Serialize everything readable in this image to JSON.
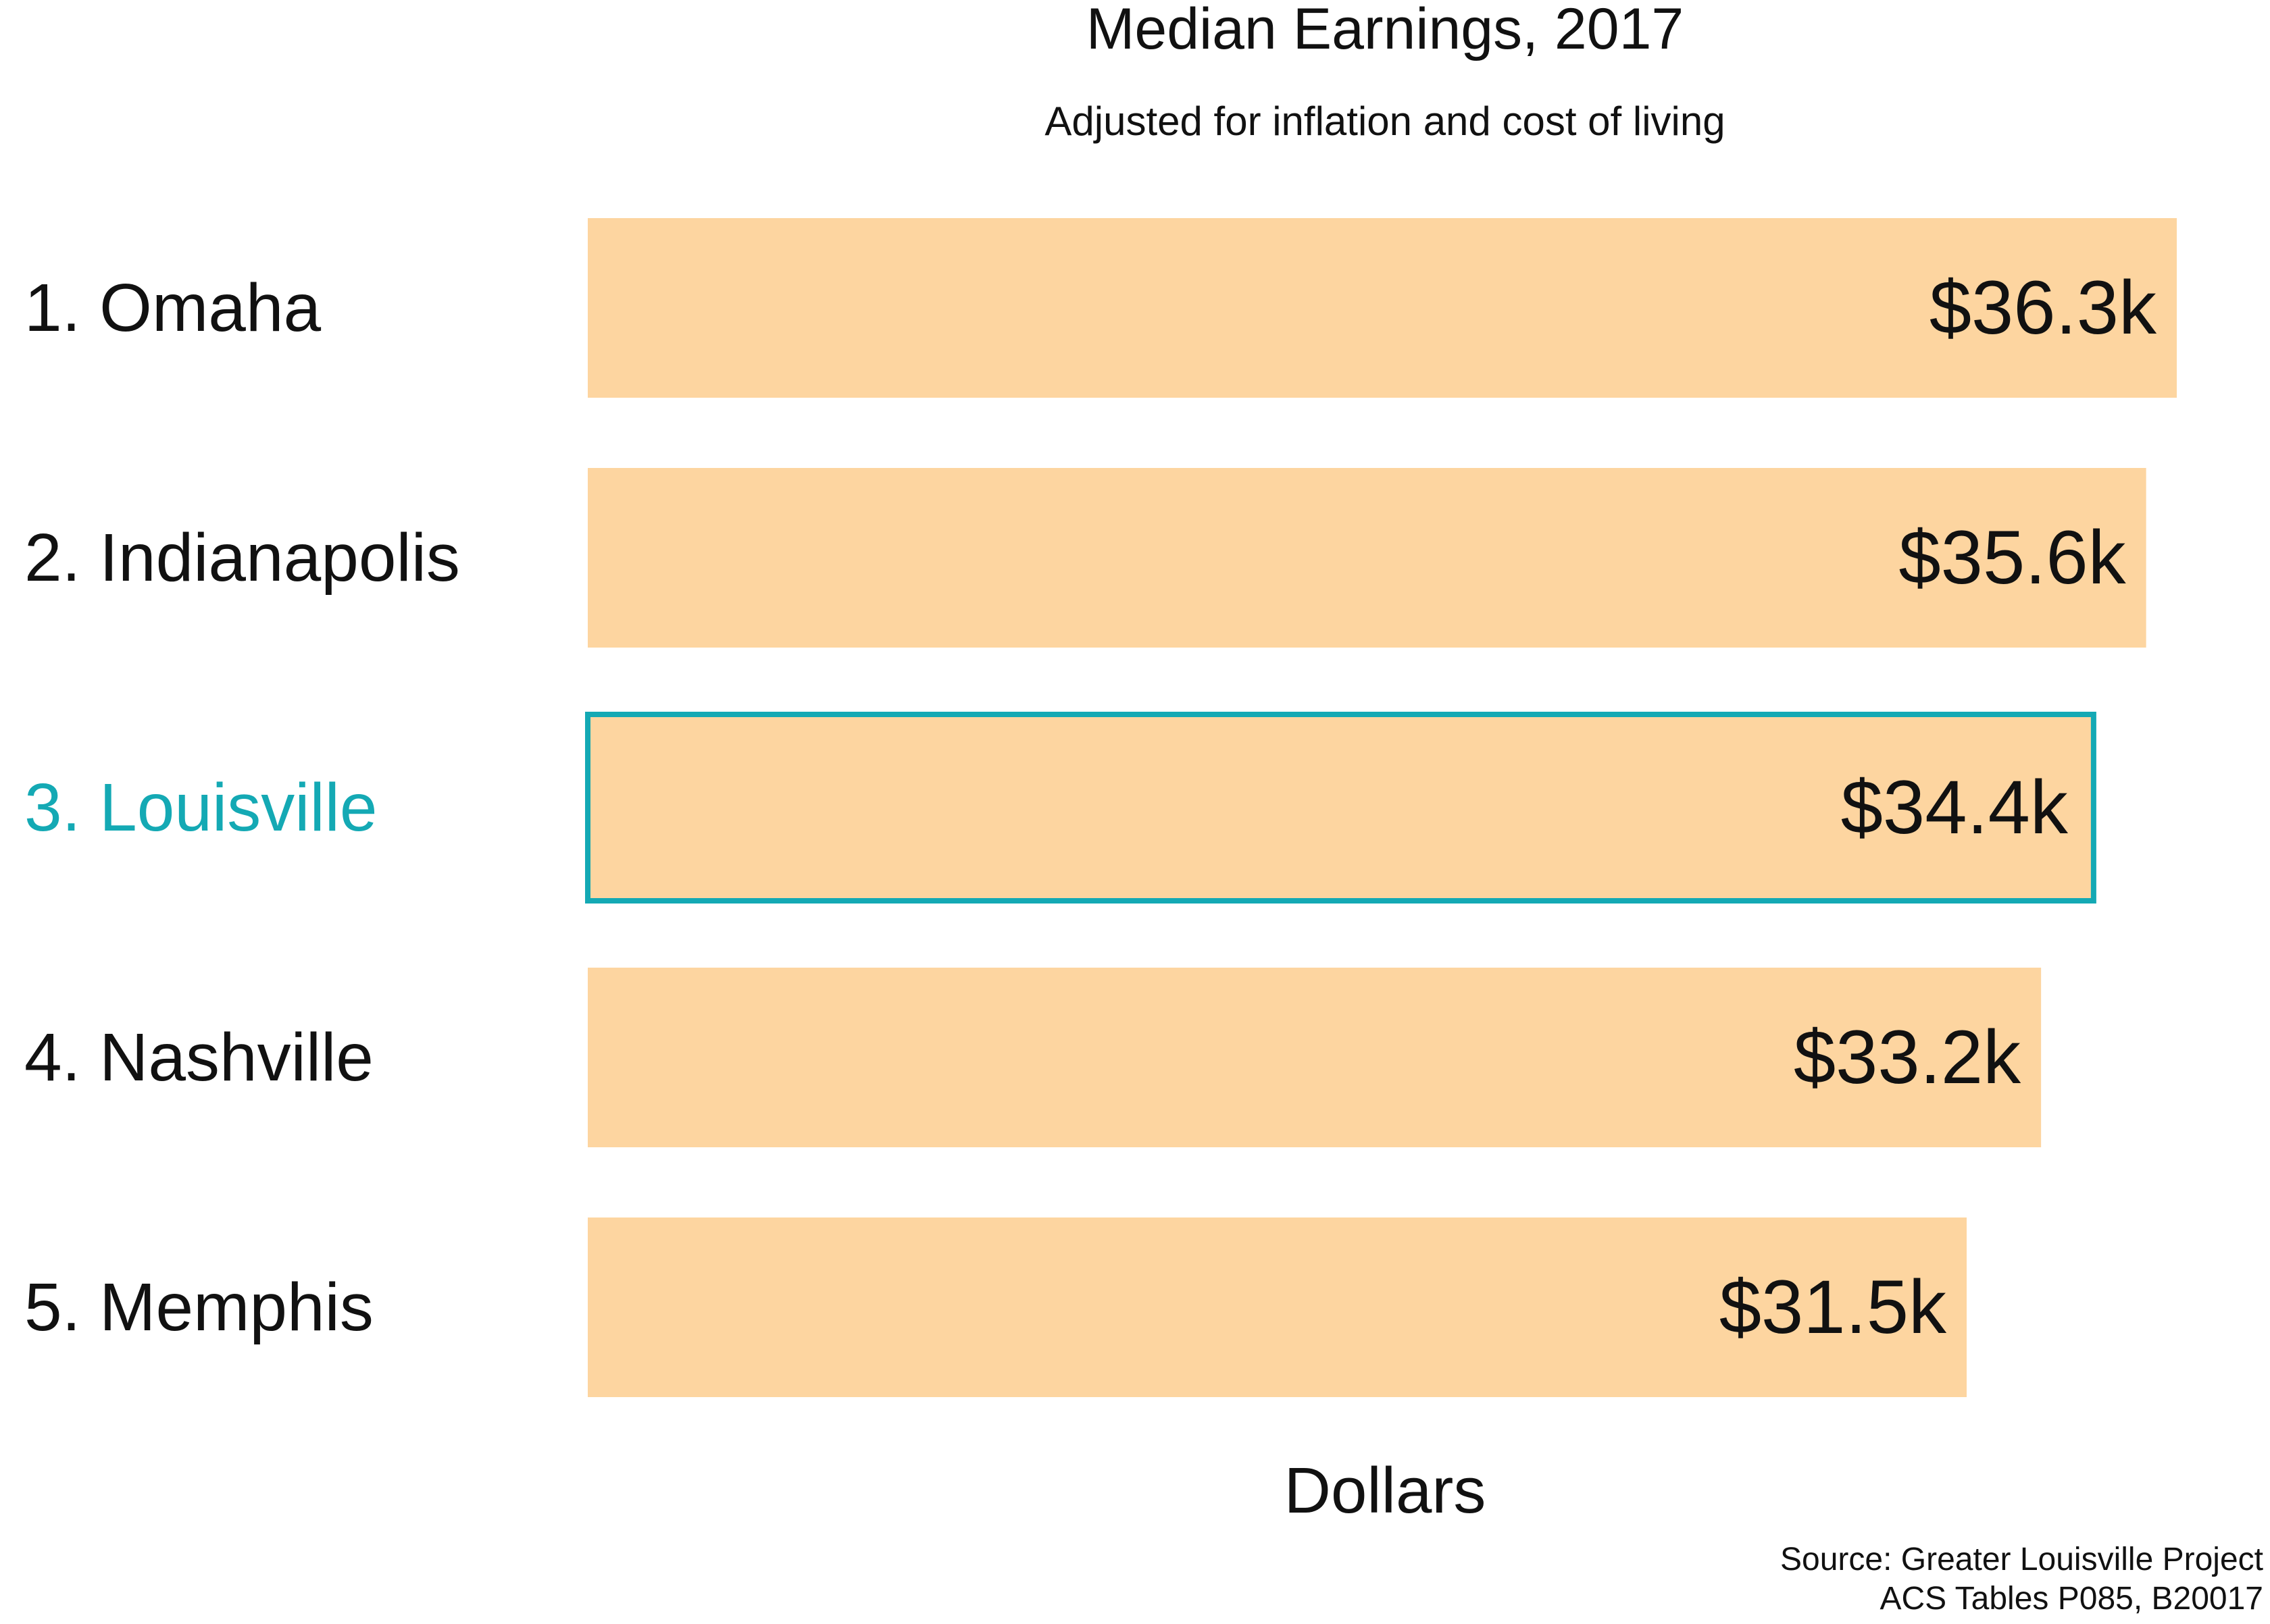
{
  "chart_data": {
    "type": "bar",
    "orientation": "horizontal",
    "title": "Median Earnings, 2017",
    "subtitle": "Adjusted for inflation and cost of living",
    "xlabel": "Dollars",
    "categories": [
      "1. Omaha",
      "2. Indianapolis",
      "3. Louisville",
      "4. Nashville",
      "5. Memphis"
    ],
    "values": [
      36.3,
      35.6,
      34.4,
      33.2,
      31.5
    ],
    "value_labels": [
      "$36.3k",
      "$35.6k",
      "$34.4k",
      "$33.2k",
      "$31.5k"
    ],
    "unit": "thousand dollars",
    "xlim": [
      0,
      36.3
    ],
    "highlight_index": 2,
    "grid": false,
    "legend": "none",
    "colors": {
      "bar": "#FDD5A0",
      "highlight": "#14A9B4",
      "text": "#111111"
    },
    "source_lines": [
      "Source: Greater Louisville Project",
      "ACS Tables P085, B20017"
    ]
  }
}
